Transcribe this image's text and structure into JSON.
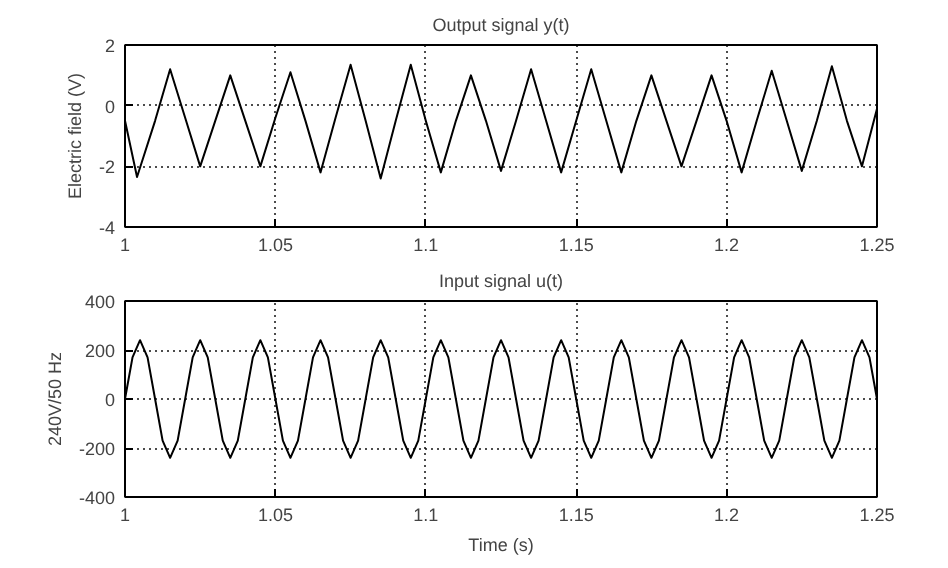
{
  "chart_data": [
    {
      "type": "line",
      "title": "Output signal y(t)",
      "ylabel": "Electric field (V)",
      "xlim": [
        1,
        1.25
      ],
      "ylim": [
        -4,
        2
      ],
      "xticks": [
        1,
        1.05,
        1.1,
        1.15,
        1.2,
        1.25
      ],
      "yticks": [
        -4,
        -2,
        0,
        2
      ],
      "grid": true,
      "line_style": "solid",
      "series": [
        {
          "color": "#000000",
          "x": [
            1.0,
            1.004,
            1.01,
            1.015,
            1.02,
            1.025,
            1.03,
            1.035,
            1.04,
            1.045,
            1.05,
            1.055,
            1.06,
            1.065,
            1.07,
            1.075,
            1.08,
            1.085,
            1.09,
            1.095,
            1.1,
            1.105,
            1.11,
            1.115,
            1.12,
            1.125,
            1.13,
            1.135,
            1.14,
            1.145,
            1.15,
            1.155,
            1.16,
            1.165,
            1.17,
            1.175,
            1.18,
            1.185,
            1.19,
            1.195,
            1.2,
            1.205,
            1.21,
            1.215,
            1.22,
            1.225,
            1.23,
            1.235,
            1.24,
            1.245,
            1.25
          ],
          "values": [
            -0.5,
            -2.35,
            -0.5,
            1.2,
            -0.4,
            -2.0,
            -0.5,
            1.0,
            -0.5,
            -2.0,
            -0.4,
            1.1,
            -0.5,
            -2.2,
            -0.4,
            1.35,
            -0.5,
            -2.4,
            -0.5,
            1.35,
            -0.5,
            -2.2,
            -0.5,
            1.0,
            -0.5,
            -2.15,
            -0.5,
            1.2,
            -0.5,
            -2.2,
            -0.5,
            1.2,
            -0.5,
            -2.2,
            -0.5,
            1.0,
            -0.5,
            -2.0,
            -0.5,
            1.0,
            -0.5,
            -2.2,
            -0.5,
            1.15,
            -0.5,
            -2.15,
            -0.5,
            1.3,
            -0.5,
            -2.0,
            -0.1
          ]
        }
      ]
    },
    {
      "type": "line",
      "title": "Input signal u(t)",
      "xlabel": "Time (s)",
      "ylabel": "240V/50 Hz",
      "xlim": [
        1,
        1.25
      ],
      "ylim": [
        -400,
        400
      ],
      "xticks": [
        1,
        1.05,
        1.1,
        1.15,
        1.2,
        1.25
      ],
      "yticks": [
        -400,
        -200,
        0,
        200,
        400
      ],
      "grid": true,
      "line_style": "solid",
      "series": [
        {
          "color": "#000000",
          "x": [
            1.0,
            1.0025,
            1.005,
            1.0075,
            1.01,
            1.0125,
            1.015,
            1.0175,
            1.02,
            1.0225,
            1.025,
            1.0275,
            1.03,
            1.0325,
            1.035,
            1.0375,
            1.04,
            1.0425,
            1.045,
            1.0475,
            1.05,
            1.0525,
            1.055,
            1.0575,
            1.06,
            1.0625,
            1.065,
            1.0675,
            1.07,
            1.0725,
            1.075,
            1.0775,
            1.08,
            1.0825,
            1.085,
            1.0875,
            1.09,
            1.0925,
            1.095,
            1.0975,
            1.1,
            1.1025,
            1.105,
            1.1075,
            1.11,
            1.1125,
            1.115,
            1.1175,
            1.12,
            1.1225,
            1.125,
            1.1275,
            1.13,
            1.1325,
            1.135,
            1.1375,
            1.14,
            1.1425,
            1.145,
            1.1475,
            1.15,
            1.1525,
            1.155,
            1.1575,
            1.16,
            1.1625,
            1.165,
            1.1675,
            1.17,
            1.1725,
            1.175,
            1.1775,
            1.18,
            1.1825,
            1.185,
            1.1875,
            1.19,
            1.1925,
            1.195,
            1.1975,
            1.2,
            1.2025,
            1.205,
            1.2075,
            1.21,
            1.2125,
            1.215,
            1.2175,
            1.22,
            1.2225,
            1.225,
            1.2275,
            1.23,
            1.2325,
            1.235,
            1.2375,
            1.24,
            1.2425,
            1.245,
            1.2475,
            1.25
          ],
          "values": [
            0,
            170,
            240,
            170,
            0,
            -170,
            -240,
            -170,
            0,
            170,
            240,
            170,
            0,
            -170,
            -240,
            -170,
            0,
            170,
            240,
            170,
            0,
            -170,
            -240,
            -170,
            0,
            170,
            240,
            170,
            0,
            -170,
            -240,
            -170,
            0,
            170,
            240,
            170,
            0,
            -170,
            -240,
            -170,
            0,
            170,
            240,
            170,
            0,
            -170,
            -240,
            -170,
            0,
            170,
            240,
            170,
            0,
            -170,
            -240,
            -170,
            0,
            170,
            240,
            170,
            0,
            -170,
            -240,
            -170,
            0,
            170,
            240,
            170,
            0,
            -170,
            -240,
            -170,
            0,
            170,
            240,
            170,
            0,
            -170,
            -240,
            -170,
            0,
            170,
            240,
            170,
            0,
            -170,
            -240,
            -170,
            0,
            170,
            240,
            170,
            0,
            -170,
            -240,
            -170,
            0,
            170,
            240,
            170,
            0
          ]
        }
      ]
    }
  ]
}
